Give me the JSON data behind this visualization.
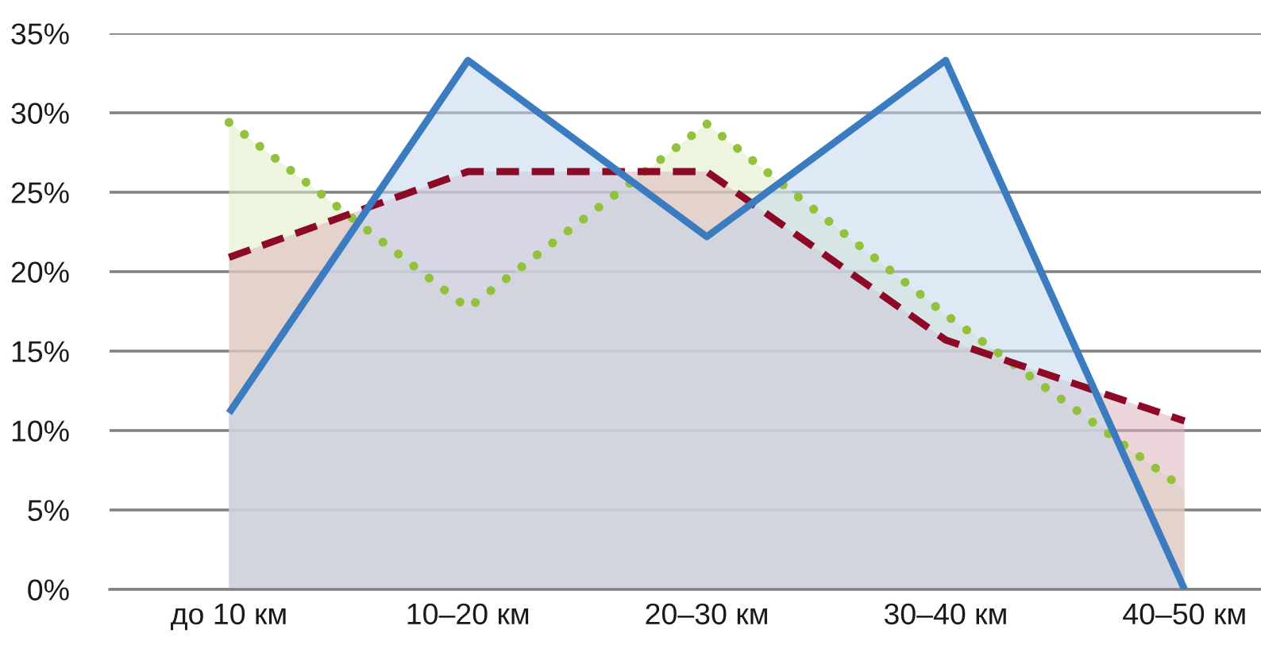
{
  "chart_data": {
    "type": "area",
    "categories": [
      "до 10 км",
      "10–20 км",
      "20–30 км",
      "30–40 км",
      "40–50 км"
    ],
    "series": [
      {
        "color": "#92c13c",
        "line_style": "dotted",
        "values": [
          29.4,
          17.7,
          29.3,
          17.3,
          6.3
        ]
      },
      {
        "color": "#8c0a26",
        "line_style": "dashed",
        "values": [
          20.9,
          26.3,
          26.3,
          15.7,
          10.6
        ]
      },
      {
        "color": "#3b7bbf",
        "line_style": "solid",
        "values": [
          11.1,
          33.3,
          22.2,
          33.3,
          0
        ]
      }
    ],
    "ylim": [
      0,
      35
    ],
    "yticks": [
      {
        "value": 0,
        "label": "0%"
      },
      {
        "value": 5,
        "label": "5%"
      },
      {
        "value": 10,
        "label": "10%"
      },
      {
        "value": 15,
        "label": "15%"
      },
      {
        "value": 20,
        "label": "20%"
      },
      {
        "value": 25,
        "label": "25%"
      },
      {
        "value": 30,
        "label": "30%"
      },
      {
        "value": 35,
        "label": "35%"
      }
    ],
    "grid": "y"
  }
}
